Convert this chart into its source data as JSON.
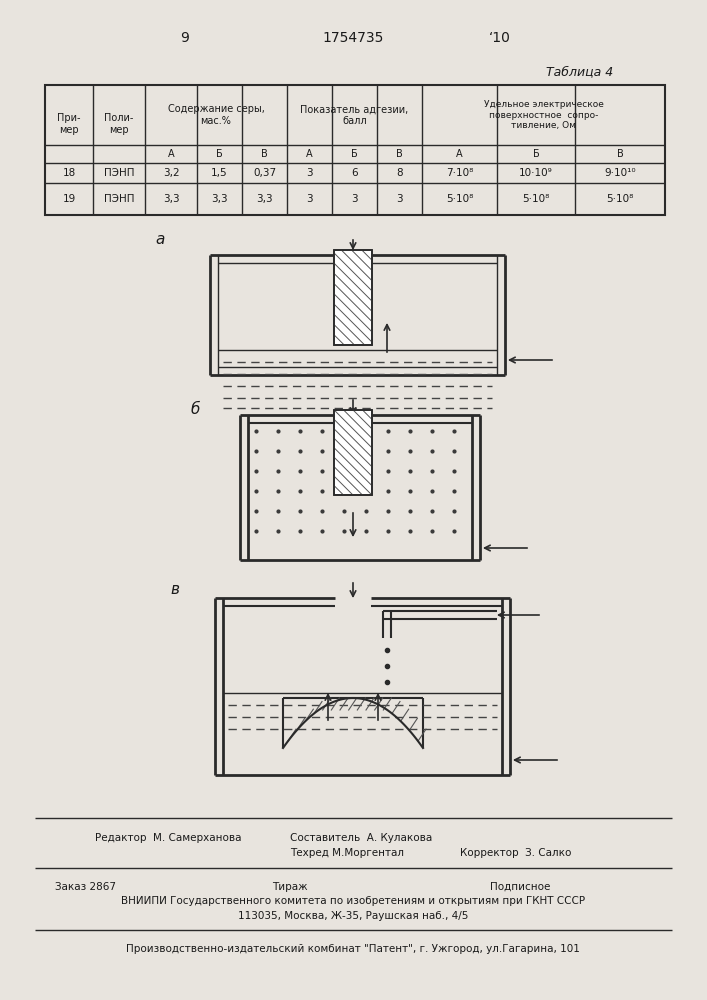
{
  "page_numbers": [
    "9",
    "1754735",
    "‘10"
  ],
  "table_title": "Таблица 4",
  "header_col1": "При-\nмер",
  "header_col2": "Поли-\nмер",
  "header_ser": "Содержание серы,\nмас.%",
  "header_adg": "Показатель адгезии,\nбалл",
  "header_udel": "Удельное электрическое\nповерхностное сопро-\nтивление, Ом",
  "sub_labels": [
    "А",
    "Б",
    "В",
    "А",
    "Б",
    "В",
    "А",
    "Б",
    "В"
  ],
  "data_rows": [
    [
      "18",
      "ПЭНП",
      "3,2",
      "1,5",
      "0,37",
      "3",
      "6",
      "8",
      "7·10⁸",
      "10·10⁹",
      "9·10¹⁰"
    ],
    [
      "19",
      "ПЭНП",
      "3,3",
      "3,3",
      "3,3",
      "3",
      "3",
      "3",
      "5·10⁸",
      "5·10⁸",
      "5·10⁸"
    ]
  ],
  "diag_labels": [
    "а",
    "б",
    "в"
  ],
  "footer_editor": "Редактор  М. Самерханова",
  "footer_comp": "Составитель  А. Кулакова",
  "footer_tech": "Техред М.Моргентал",
  "footer_corr": "Корректор  З. Салко",
  "footer_order": "Заказ 2867",
  "footer_tirazh": "Тираж",
  "footer_podp": "Подписное",
  "footer_vniip1": "ВНИИПИ Государственного комитета по изобретениям и открытиям при ГКНТ СССР",
  "footer_vniip2": "113035, Москва, Ж-35, Раушская наб., 4/5",
  "footer_prod": "Производственно-издательский комбинат \"Патент\", г. Ужгород, ул.Гагарина, 101",
  "bg_color": "#e8e4de",
  "text_color": "#1a1a1a",
  "line_color": "#2a2a2a"
}
